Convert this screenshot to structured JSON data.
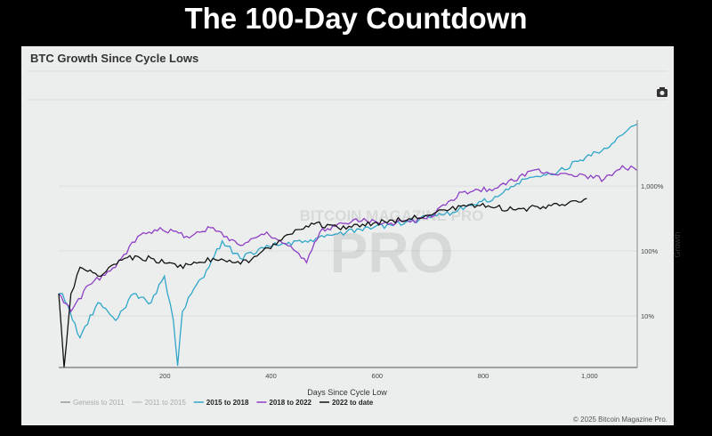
{
  "header": {
    "title": "The 100-Day Countdown"
  },
  "chart_data": {
    "type": "line",
    "title": "BTC Growth Since Cycle Lows",
    "xlabel": "Days Since Cycle Low",
    "ylabel": "Growth",
    "xscale": "linear",
    "yscale": "log",
    "xlim": [
      0,
      1090
    ],
    "ylim": [
      1.6,
      21500
    ],
    "x_ticks": [
      200,
      400,
      600,
      800,
      1000
    ],
    "x_tick_labels": [
      "200",
      "400",
      "600",
      "800",
      "1,000"
    ],
    "y_ticks": [
      10,
      100,
      1000
    ],
    "y_tick_labels": [
      "10%",
      "100%",
      "1,000%"
    ],
    "grid": true,
    "legend_position": "bottom-left",
    "series": [
      {
        "name": "Genesis to 2011",
        "color": "#9a9a9a",
        "visible": false,
        "points": []
      },
      {
        "name": "2011 to 2015",
        "color": "#c4c4c4",
        "visible": false,
        "points": []
      },
      {
        "name": "2015 to 2018",
        "color": "#2fa6c9",
        "visible": true,
        "points": [
          [
            0,
            22
          ],
          [
            7,
            22
          ],
          [
            40,
            4.6
          ],
          [
            74,
            16
          ],
          [
            107,
            8.5
          ],
          [
            141,
            22
          ],
          [
            174,
            16
          ],
          [
            199,
            41
          ],
          [
            216,
            8.5
          ],
          [
            224,
            1.7
          ],
          [
            233,
            11.6
          ],
          [
            250,
            22
          ],
          [
            283,
            56
          ],
          [
            308,
            143
          ],
          [
            342,
            77
          ],
          [
            392,
            122
          ],
          [
            459,
            135
          ],
          [
            526,
            184
          ],
          [
            593,
            229
          ],
          [
            660,
            286
          ],
          [
            727,
            367
          ],
          [
            777,
            500
          ],
          [
            827,
            687
          ],
          [
            878,
            1285
          ],
          [
            928,
            1500
          ],
          [
            978,
            2400
          ],
          [
            1028,
            3850
          ],
          [
            1062,
            6150
          ],
          [
            1089,
            8950
          ]
        ]
      },
      {
        "name": "2018 to 2022",
        "color": "#8e3fc4",
        "visible": true,
        "points": [
          [
            0,
            22
          ],
          [
            23,
            11.7
          ],
          [
            57,
            30
          ],
          [
            107,
            56
          ],
          [
            149,
            168
          ],
          [
            191,
            229
          ],
          [
            241,
            168
          ],
          [
            291,
            229
          ],
          [
            342,
            122
          ],
          [
            392,
            196
          ],
          [
            442,
            105
          ],
          [
            467,
            66
          ],
          [
            492,
            196
          ],
          [
            560,
            314
          ],
          [
            626,
            268
          ],
          [
            693,
            314
          ],
          [
            760,
            803
          ],
          [
            827,
            939
          ],
          [
            894,
            1760
          ],
          [
            961,
            1500
          ],
          [
            1028,
            1285
          ],
          [
            1062,
            2055
          ],
          [
            1089,
            1760
          ]
        ]
      },
      {
        "name": "2022 to date",
        "color": "#111111",
        "visible": true,
        "points": [
          [
            0,
            22
          ],
          [
            10,
            1.6
          ],
          [
            23,
            22
          ],
          [
            40,
            56
          ],
          [
            74,
            41
          ],
          [
            124,
            77
          ],
          [
            174,
            77
          ],
          [
            224,
            56
          ],
          [
            291,
            77
          ],
          [
            358,
            66
          ],
          [
            425,
            168
          ],
          [
            476,
            268
          ],
          [
            526,
            229
          ],
          [
            593,
            268
          ],
          [
            660,
            314
          ],
          [
            727,
            430
          ],
          [
            794,
            500
          ],
          [
            861,
            430
          ],
          [
            928,
            500
          ],
          [
            995,
            645
          ]
        ]
      }
    ]
  },
  "watermark": "BITCOIN MAGAZINE PRO",
  "toolbar": {
    "camera_icon": "camera-icon"
  },
  "footer": {
    "copyright": "© 2025 Bitcoin Magazine Pro."
  }
}
